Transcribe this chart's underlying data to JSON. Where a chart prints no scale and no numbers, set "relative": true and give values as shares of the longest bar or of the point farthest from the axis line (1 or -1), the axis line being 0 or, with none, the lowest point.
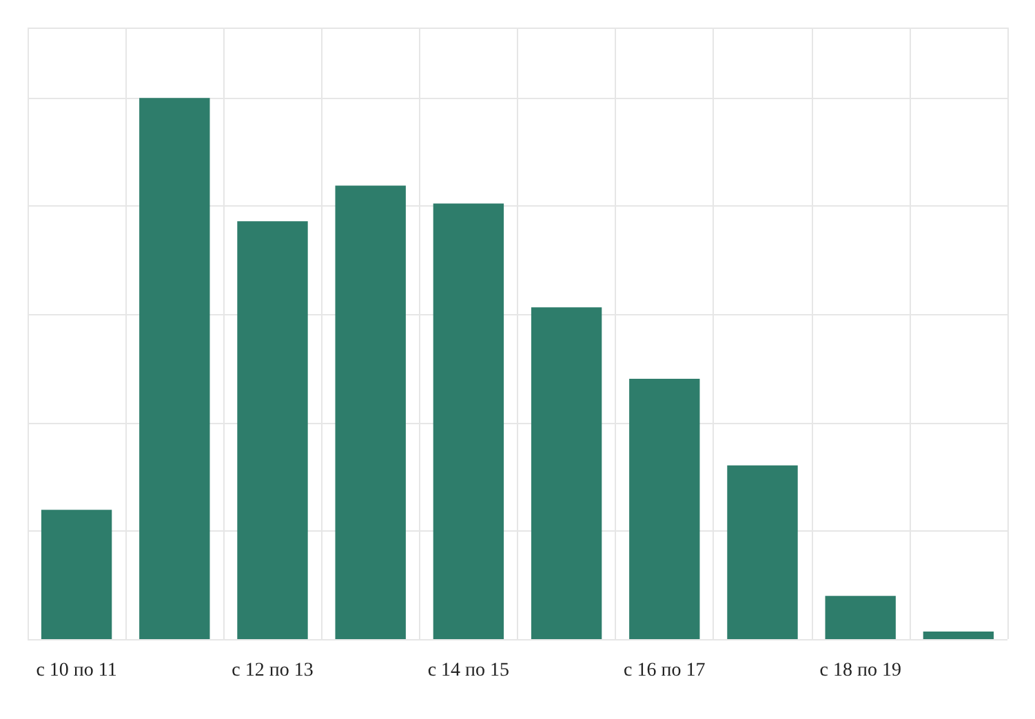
{
  "chart_data": {
    "type": "bar",
    "relative": true,
    "categories": [
      "с 10 по 11",
      null,
      "с 12 по 13",
      null,
      "с 14 по 15",
      null,
      "с 16 по 17",
      null,
      "с 18 по 19",
      null
    ],
    "values": [
      0.239,
      1,
      0.772,
      0.838,
      0.805,
      0.613,
      0.481,
      0.321,
      0.08,
      0.014
    ],
    "color": "#2e7d6b",
    "grid": true
  }
}
